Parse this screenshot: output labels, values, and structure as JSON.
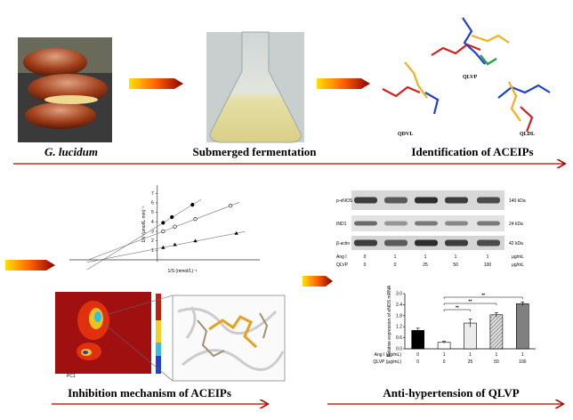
{
  "steps": [
    "G. lucidum",
    "Submerged fermentation",
    "Identification of ACEIPs",
    "Inhibition mechanism of ACEIPs",
    "Anti-hypertension of QLVP"
  ],
  "peptides": [
    "QLVP",
    "QDVL",
    "QLDL"
  ],
  "kinetics": {
    "type": "scatter",
    "ylabel": "1/V (μmol/L·min)⁻¹",
    "xlabel": "1/S (mmol/L)⁻¹",
    "xlim": [
      -3,
      3.5
    ],
    "ylim": [
      0,
      7.5
    ],
    "yticks": [
      1,
      2,
      3,
      4,
      5,
      6,
      7
    ],
    "series": [
      {
        "marker": "filled-circle",
        "x": [
          0.2,
          0.5,
          1.2
        ],
        "values": [
          3.9,
          4.5,
          5.8
        ]
      },
      {
        "marker": "open-circle",
        "x": [
          0.2,
          0.6,
          1.3,
          2.5
        ],
        "values": [
          3.0,
          3.5,
          4.3,
          5.7
        ]
      },
      {
        "marker": "filled-triangle",
        "x": [
          0.2,
          0.6,
          1.3,
          2.7
        ],
        "values": [
          1.3,
          1.6,
          2.0,
          2.8
        ]
      }
    ]
  },
  "blot": {
    "rows": [
      "p-eNOS",
      "IND1",
      "β-actin"
    ],
    "sizes": [
      "140 kDa",
      "24 kDa",
      "42 kDa"
    ],
    "conditions": [
      {
        "name": "Ang I",
        "levels": [
          "0",
          "1",
          "1",
          "1",
          "1"
        ]
      },
      {
        "name": "QLVP",
        "levels": [
          "0",
          "0",
          "25",
          "50",
          "100"
        ]
      }
    ],
    "unit": "μg/mL"
  },
  "bar_chart": {
    "type": "bar",
    "ylabel": "Relative expression of eNOS mRNA",
    "values": [
      1.0,
      0.35,
      1.4,
      1.85,
      2.45
    ],
    "errors": [
      0.12,
      0.05,
      0.22,
      0.12,
      0.1
    ],
    "colors": [
      "#000000",
      "#ffffff",
      "#ececec",
      "#d0d0d0",
      "#808080"
    ],
    "hatched": [
      false,
      false,
      false,
      true,
      false
    ],
    "ylim": [
      0,
      3
    ],
    "yticks": [
      {
        "value": 0,
        "label": "0.0"
      },
      {
        "value": 0.6,
        "label": "0.6"
      },
      {
        "value": 1.2,
        "label": "1.2"
      },
      {
        "value": 1.8,
        "label": "1.8"
      },
      {
        "value": 2.4,
        "label": "2.4"
      },
      {
        "value": 3,
        "label": "3.0"
      }
    ],
    "rows": [
      {
        "name": "Ang I (μg/mL)",
        "levels": [
          "0",
          "1",
          "1",
          "1",
          "1"
        ]
      },
      {
        "name": "QLVP (μg/mL)",
        "levels": [
          "0",
          "0",
          "25",
          "50",
          "100"
        ]
      }
    ],
    "annotations": [
      "**",
      "**",
      "**"
    ]
  }
}
